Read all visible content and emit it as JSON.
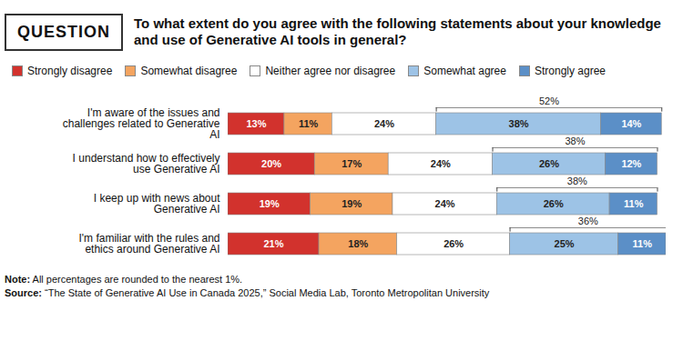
{
  "chart_data": {
    "type": "bar",
    "question_label": "QUESTION",
    "title": "To what extent do you agree with the following statements about your knowledge and use of Generative AI tools in general?",
    "orientation": "horizontal",
    "stacked": true,
    "data_labels": true,
    "tick_labels": "y",
    "legend": "top",
    "grid": false,
    "xlim": [
      0,
      101
    ],
    "categories": [
      "I'm aware of the issues and challenges related to Generative AI",
      "I understand how to effectively use Generative AI",
      "I keep up with news about Generative AI",
      "I'm familiar with the rules and ethics around Generative AI"
    ],
    "series": [
      {
        "name": "Strongly disagree",
        "color": "#d2322d",
        "values": [
          13,
          20,
          19,
          21
        ],
        "value_labels": [
          "13%",
          "20%",
          "19%",
          "21%"
        ]
      },
      {
        "name": "Somewhat disagree",
        "color": "#f4a460",
        "values": [
          11,
          17,
          19,
          18
        ],
        "value_labels": [
          "11%",
          "17%",
          "19%",
          "18%"
        ]
      },
      {
        "name": "Neither agree nor disagree",
        "color": "#ffffff",
        "values": [
          24,
          24,
          24,
          26
        ],
        "value_labels": [
          "24%",
          "24%",
          "24%",
          "26%"
        ]
      },
      {
        "name": "Somewhat agree",
        "color": "#9dc3e6",
        "values": [
          38,
          26,
          26,
          25
        ],
        "value_labels": [
          "38%",
          "26%",
          "26%",
          "25%"
        ]
      },
      {
        "name": "Strongly agree",
        "color": "#5b8fc7",
        "values": [
          14,
          12,
          11,
          11
        ],
        "value_labels": [
          "14%",
          "12%",
          "11%",
          "11%"
        ]
      }
    ],
    "agree_totals": {
      "values": [
        52,
        38,
        38,
        36
      ],
      "value_labels": [
        "52%",
        "38%",
        "38%",
        "36%"
      ]
    },
    "note": {
      "label": "Note:",
      "text": "All percentages are rounded to the nearest 1%."
    },
    "source": {
      "label": "Source:",
      "text": "“The State of Generative AI Use in Canada 2025,” Social Media Lab, Toronto Metropolitan University"
    }
  }
}
